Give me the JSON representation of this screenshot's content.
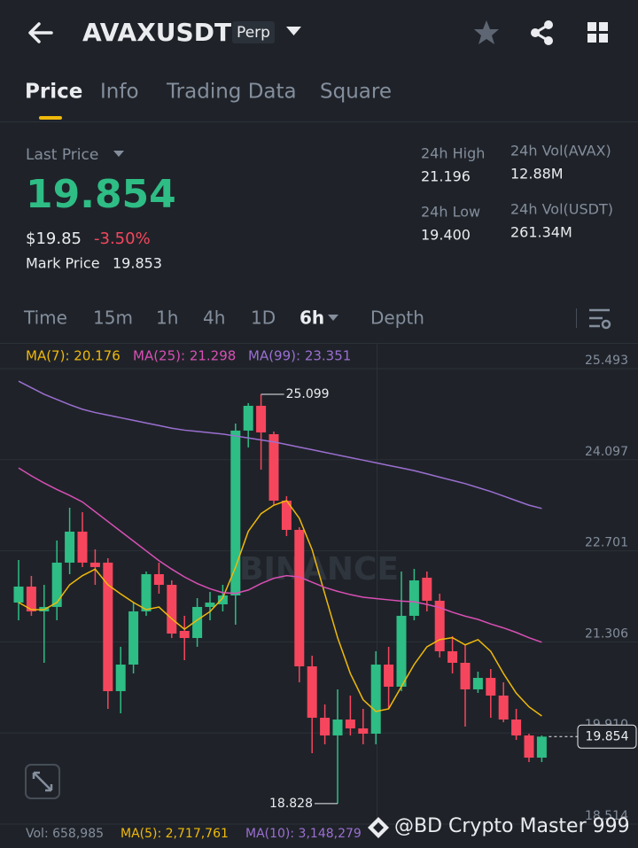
{
  "header": {
    "symbol": "AVAXUSDT",
    "contract": "Perp"
  },
  "tabs": [
    "Price",
    "Info",
    "Trading Data",
    "Square"
  ],
  "stats": {
    "last_price_label": "Last Price",
    "last_price": "19.854",
    "usd_price": "$19.85",
    "change": "-3.50%",
    "mark_price_label": "Mark Price",
    "mark_price": "19.853",
    "high_label": "24h High",
    "high": "21.196",
    "low_label": "24h Low",
    "low": "19.400",
    "vol_base_label": "24h Vol(AVAX)",
    "vol_base": "12.88M",
    "vol_quote_label": "24h Vol(USDT)",
    "vol_quote": "261.34M"
  },
  "intervals": [
    "Time",
    "15m",
    "1h",
    "4h",
    "1D",
    "6h",
    "Depth"
  ],
  "watermark": "BINANCE",
  "volume_legend": [
    "Vol: 658,985",
    "MA(5): 2,717,761",
    "MA(10): 3,148,279"
  ],
  "credit": "@BD Crypto Master 999",
  "chart_data": {
    "type": "candlestick",
    "open": [
      21.908,
      22.153,
      21.773,
      21.841,
      22.52,
      22.995,
      22.52,
      22.52,
      20.551,
      20.958,
      21.773,
      22.343,
      22.18,
      21.474,
      21.365,
      21.841,
      21.881,
      22.017,
      24.543,
      24.923,
      24.488,
      23.47,
      23.022,
      20.931,
      20.143,
      19.872,
      20.116,
      19.98,
      19.899,
      20.958,
      20.619,
      21.705,
      22.289,
      21.936,
      21.162,
      20.985,
      20.578,
      20.754,
      20.483,
      20.116,
      19.872,
      19.532
    ],
    "high": [
      22.56,
      22.316,
      22.18,
      22.859,
      23.361,
      23.293,
      22.723,
      22.587,
      21.23,
      21.908,
      22.384,
      22.52,
      22.248,
      21.705,
      21.976,
      22.071,
      22.18,
      24.651,
      24.964,
      25.099,
      24.529,
      23.538,
      23.063,
      21.094,
      20.347,
      20.578,
      20.483,
      20.279,
      21.162,
      21.23,
      22.384,
      22.424,
      22.384,
      22.044,
      21.393,
      21.257,
      20.849,
      20.89,
      20.686,
      20.279,
      19.899,
      19.872
    ],
    "low": [
      21.637,
      21.705,
      20.985,
      21.637,
      22.343,
      22.452,
      22.18,
      20.279,
      20.211,
      20.822,
      21.705,
      22.044,
      21.365,
      21.026,
      21.23,
      21.637,
      21.773,
      21.569,
      24.285,
      23.945,
      23.402,
      22.927,
      20.686,
      19.6,
      19.736,
      18.828,
      19.872,
      19.736,
      19.736,
      20.279,
      20.551,
      21.637,
      21.773,
      21.067,
      20.822,
      20.008,
      20.524,
      20.143,
      20.075,
      19.804,
      19.464,
      19.464
    ],
    "close": [
      22.153,
      21.773,
      21.841,
      22.52,
      22.995,
      22.52,
      22.452,
      20.551,
      20.958,
      21.773,
      22.343,
      22.18,
      21.433,
      21.365,
      21.841,
      21.908,
      22.017,
      24.543,
      24.923,
      24.515,
      23.47,
      23.022,
      20.931,
      20.143,
      19.872,
      20.116,
      19.98,
      19.899,
      20.958,
      20.619,
      21.705,
      22.248,
      21.936,
      21.162,
      20.985,
      20.578,
      20.754,
      20.483,
      20.116,
      19.872,
      19.532,
      19.854
    ],
    "up_color": "#2ebd85",
    "down_color": "#f6465d",
    "ma": [
      {
        "name": "MA(7): 20.176",
        "color": "#f0b90b",
        "values": [
          21.91,
          21.8,
          21.8,
          21.91,
          22.18,
          22.32,
          22.42,
          22.18,
          22.04,
          21.91,
          21.8,
          21.84,
          21.66,
          21.5,
          21.64,
          21.77,
          21.98,
          22.45,
          23.0,
          23.27,
          23.4,
          23.47,
          23.2,
          22.72,
          22.04,
          21.37,
          20.82,
          20.42,
          20.24,
          20.28,
          20.62,
          20.96,
          21.23,
          21.34,
          21.37,
          21.26,
          21.34,
          21.16,
          20.82,
          20.52,
          20.31,
          20.17
        ]
      },
      {
        "name": "MA(25): 21.298",
        "color": "#d94fb5",
        "values": [
          23.97,
          23.85,
          23.74,
          23.64,
          23.55,
          23.45,
          23.3,
          23.15,
          23.0,
          22.85,
          22.7,
          22.55,
          22.42,
          22.3,
          22.2,
          22.12,
          22.06,
          22.05,
          22.1,
          22.2,
          22.28,
          22.32,
          22.3,
          22.22,
          22.14,
          22.08,
          22.03,
          21.99,
          21.97,
          21.95,
          21.93,
          21.92,
          21.88,
          21.83,
          21.76,
          21.7,
          21.65,
          21.58,
          21.52,
          21.45,
          21.37,
          21.3
        ]
      },
      {
        "name": "MA(99): 23.351",
        "color": "#9b6fd1",
        "values": [
          25.3,
          25.2,
          25.1,
          25.02,
          24.94,
          24.87,
          24.82,
          24.78,
          24.74,
          24.7,
          24.66,
          24.62,
          24.58,
          24.55,
          24.53,
          24.51,
          24.49,
          24.46,
          24.43,
          24.4,
          24.37,
          24.33,
          24.29,
          24.25,
          24.21,
          24.17,
          24.13,
          24.09,
          24.05,
          24.01,
          23.97,
          23.93,
          23.88,
          23.83,
          23.78,
          23.73,
          23.67,
          23.61,
          23.54,
          23.47,
          23.4,
          23.35
        ]
      }
    ],
    "ylim": [
      18.514,
      25.873
    ],
    "yticks": [
      25.493,
      24.097,
      22.701,
      21.306,
      {
        "value": 19.91,
        "label": "19.910"
      },
      18.514
    ],
    "grid": true
  }
}
